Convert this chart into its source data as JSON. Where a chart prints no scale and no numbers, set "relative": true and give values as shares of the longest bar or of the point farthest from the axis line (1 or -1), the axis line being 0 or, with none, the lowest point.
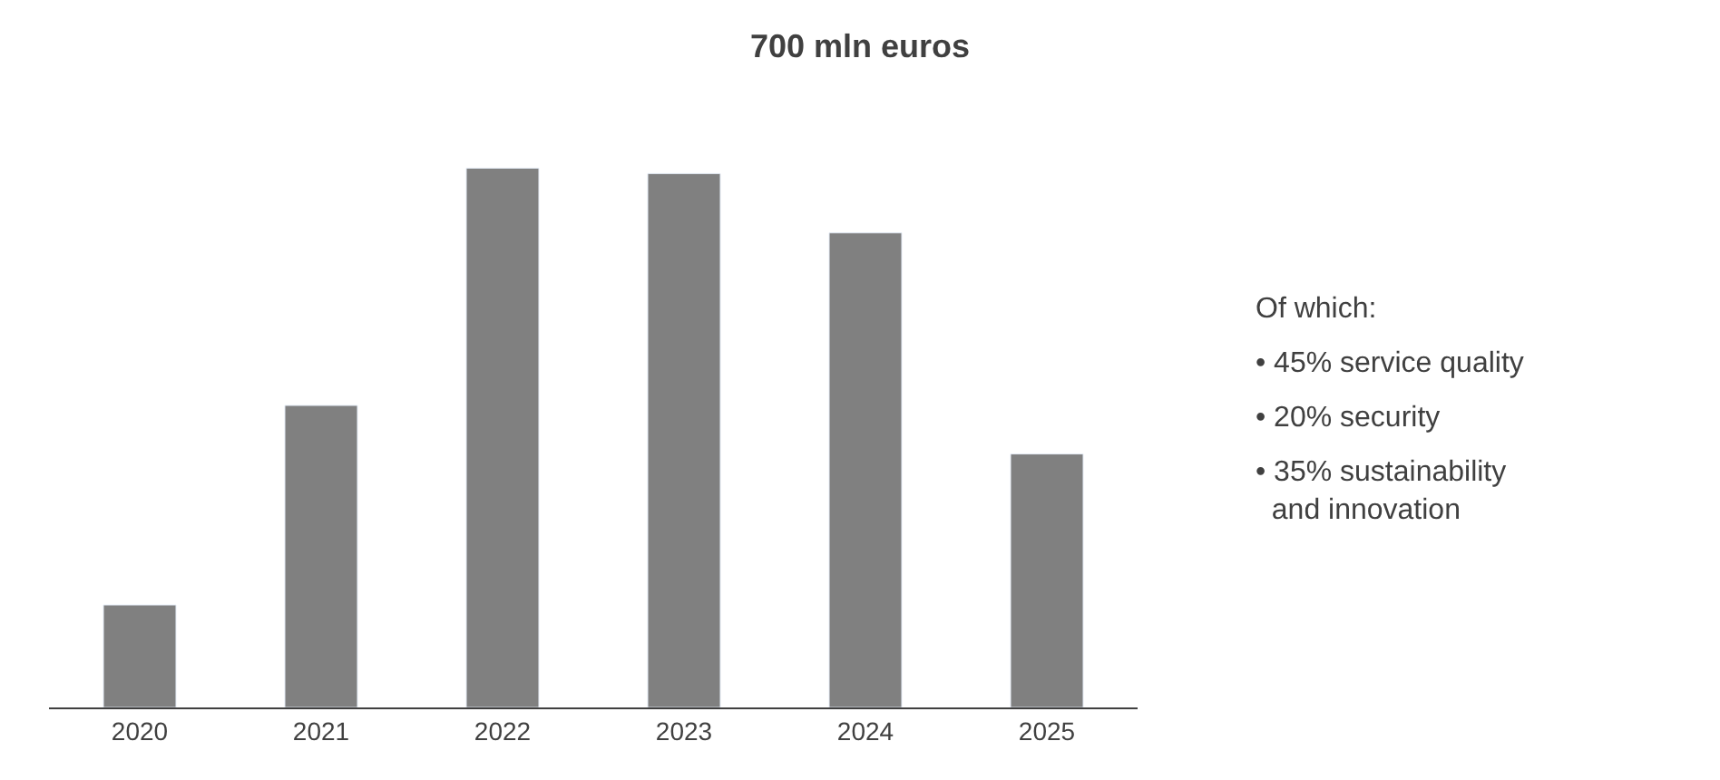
{
  "chart_data": {
    "type": "bar",
    "title": "700 mln euros",
    "relative": true,
    "categories": [
      "2020",
      "2021",
      "2022",
      "2023",
      "2024",
      "2025"
    ],
    "values": [
      0.19,
      0.56,
      1,
      0.99,
      0.88,
      0.47
    ],
    "color": "#808080",
    "annotations": [
      "Of which:",
      "• 45% service quality",
      "• 20% security",
      "• 35% sustainability and innovation"
    ]
  }
}
